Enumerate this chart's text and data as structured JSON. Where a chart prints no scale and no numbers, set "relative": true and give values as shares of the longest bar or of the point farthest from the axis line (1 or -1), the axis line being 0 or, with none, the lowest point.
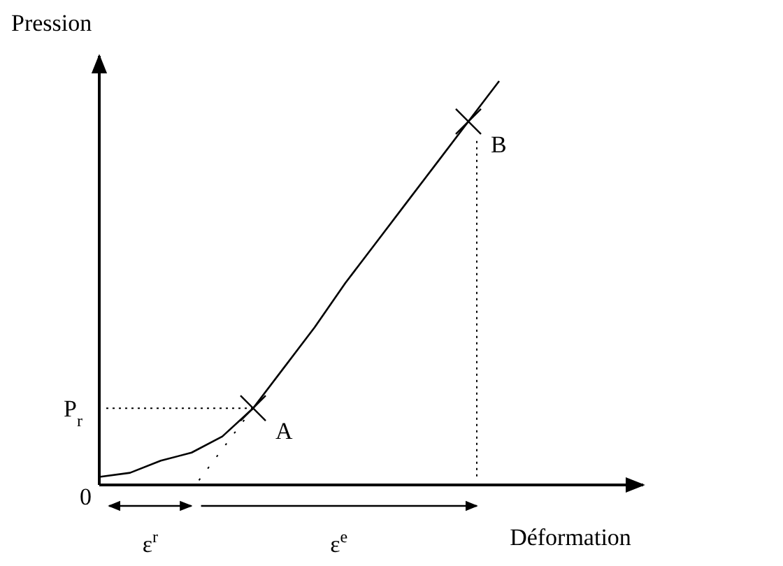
{
  "chart_data": {
    "type": "line",
    "relative": true,
    "xlabel": "Déformation",
    "ylabel": "Pression",
    "categories": [
      null,
      null,
      null,
      null,
      null,
      null,
      null,
      null,
      null,
      null,
      null,
      null,
      null,
      null
    ],
    "series": [
      {
        "color": "#000000",
        "values": [
          0.02,
          0.03,
          0.06,
          0.08,
          0.12,
          0.19,
          0.29,
          0.39,
          0.5,
          0.6,
          0.7,
          0.8,
          0.9,
          1
        ]
      }
    ],
    "ref_lines": [
      {
        "axis": "y",
        "value": 0.19,
        "label": "P$_{r}$",
        "line_style": "dotted"
      }
    ],
    "annotations": [
      "0",
      "ε$^{r}$",
      "ε$^{e}$",
      "A",
      "B"
    ],
    "marker": "none",
    "line_style": "solid"
  }
}
